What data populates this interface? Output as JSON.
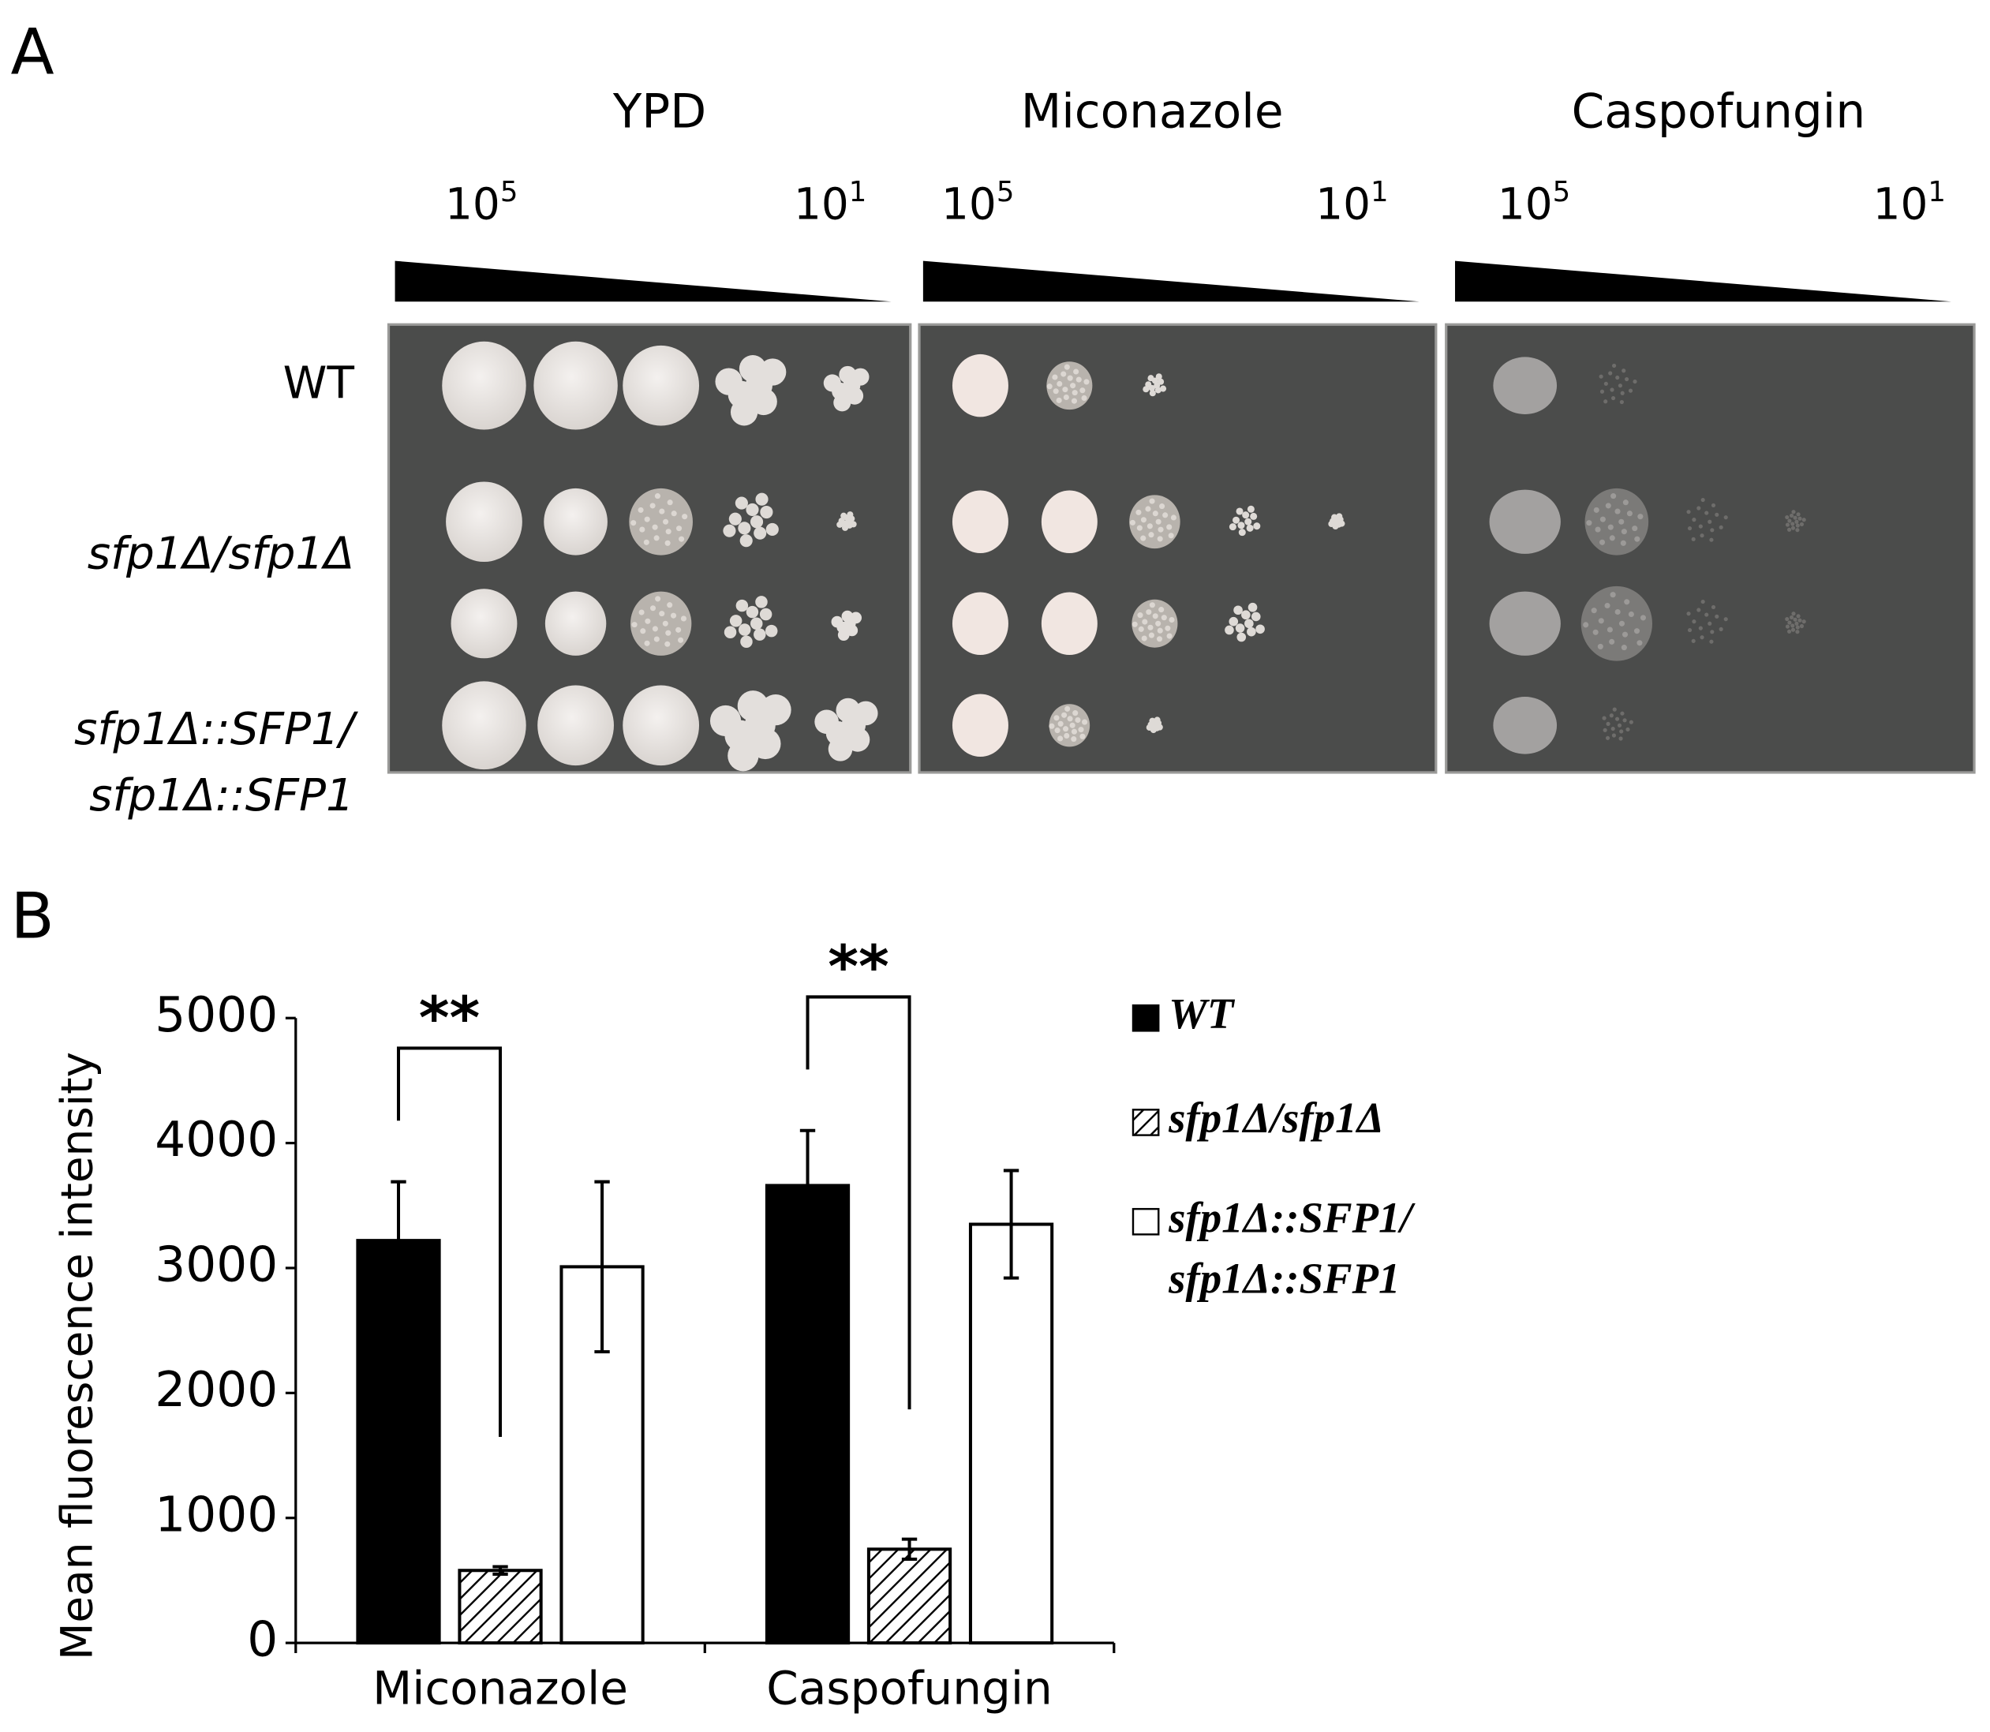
{
  "panel_a": {
    "label": "A",
    "conditions": [
      "YPD",
      "Miconazole",
      "Caspofungin"
    ],
    "dilutions": [
      {
        "base": "10",
        "exponent": "5"
      },
      {
        "base": "10",
        "exponent": "1"
      }
    ],
    "strains": [
      "WT",
      "sfp1Δ/sfp1Δ",
      "sfp1Δ::SFP1/",
      "sfp1Δ::SFP1"
    ]
  },
  "panel_b": {
    "label": "B"
  },
  "chart_data": {
    "type": "bar",
    "y_label": "Mean fluorescence intensity",
    "categories": [
      "Miconazole",
      "Caspofungin"
    ],
    "series": [
      {
        "name": "WT",
        "color": "#000000",
        "values": [
          3220,
          3660
        ],
        "errors": [
          470,
          440
        ]
      },
      {
        "name": "sfp1Δ/sfp1Δ",
        "color": "#ffffff",
        "hatch": true,
        "values": [
          580,
          750
        ],
        "errors": [
          30,
          80
        ]
      },
      {
        "name": "sfp1Δ::SFP1/sfp1Δ::SFP1",
        "color": "#ffffff",
        "values": [
          3010,
          3350
        ],
        "errors": [
          680,
          430
        ]
      }
    ],
    "annotations": [
      "**",
      "**"
    ],
    "ylim": [
      0,
      5000
    ],
    "yticks": [
      0,
      1000,
      2000,
      3000,
      4000,
      5000
    ]
  }
}
